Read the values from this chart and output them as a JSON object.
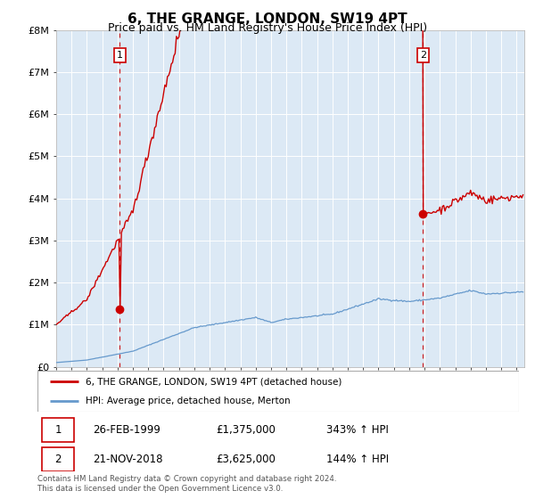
{
  "title": "6, THE GRANGE, LONDON, SW19 4PT",
  "subtitle": "Price paid vs. HM Land Registry's House Price Index (HPI)",
  "title_fontsize": 11,
  "subtitle_fontsize": 9,
  "background_color": "#dce9f5",
  "plot_bg_color": "#dce9f5",
  "outer_bg_color": "#ffffff",
  "red_line_color": "#cc0000",
  "blue_line_color": "#6699cc",
  "dashed_line_color": "#cc0000",
  "marker_color": "#cc0000",
  "grid_color": "#ffffff",
  "ylabel_ticks": [
    "£0",
    "£1M",
    "£2M",
    "£3M",
    "£4M",
    "£5M",
    "£6M",
    "£7M",
    "£8M"
  ],
  "ylim": [
    0,
    8000000
  ],
  "xlim_start": 1995.0,
  "xlim_end": 2025.5,
  "purchase1_x": 1999.15,
  "purchase1_y": 1375000,
  "purchase1_label": "1",
  "purchase2_x": 2018.9,
  "purchase2_y": 3625000,
  "purchase2_label": "2",
  "legend_line1": "6, THE GRANGE, LONDON, SW19 4PT (detached house)",
  "legend_line2": "HPI: Average price, detached house, Merton",
  "table_row1": [
    "1",
    "26-FEB-1999",
    "£1,375,000",
    "343% ↑ HPI"
  ],
  "table_row2": [
    "2",
    "21-NOV-2018",
    "£3,625,000",
    "144% ↑ HPI"
  ],
  "footnote": "Contains HM Land Registry data © Crown copyright and database right 2024.\nThis data is licensed under the Open Government Licence v3.0."
}
